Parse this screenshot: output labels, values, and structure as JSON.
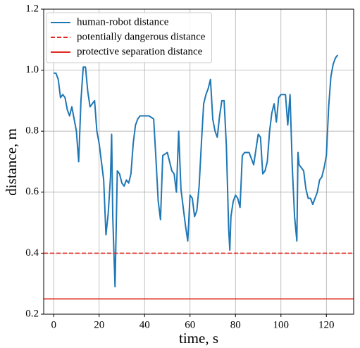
{
  "chart_data": {
    "type": "line",
    "xlabel": "time, s",
    "ylabel": "distance, m",
    "xlim": [
      -4.4,
      132
    ],
    "ylim": [
      0.2,
      1.2
    ],
    "xticks": [
      0,
      20,
      40,
      60,
      80,
      100,
      120
    ],
    "yticks": [
      0.2,
      0.4,
      0.6,
      {
        "value": 1,
        "label": "1.0"
      },
      0.8,
      1.2
    ],
    "grid": true,
    "legend": "upper left",
    "series": [
      {
        "name": "human-robot distance",
        "color": "#1f77b4",
        "x": [
          0,
          1,
          2,
          3,
          4,
          5,
          6,
          7,
          8,
          9,
          10,
          11,
          12,
          13,
          14,
          15,
          16,
          17,
          18,
          19,
          20,
          21,
          22,
          23,
          24,
          25,
          25.5,
          26,
          27,
          28,
          29,
          30,
          31,
          32,
          33,
          34,
          35,
          36,
          37,
          38,
          40,
          42,
          44,
          45,
          46,
          47,
          48,
          50,
          52,
          53,
          54,
          55,
          56,
          57,
          58,
          59,
          60,
          61,
          62,
          63,
          64,
          65,
          66,
          67,
          68,
          69,
          70,
          71,
          72,
          73,
          74,
          75,
          76,
          77,
          77.5,
          78,
          79,
          80,
          81,
          82,
          83,
          84,
          86,
          88,
          90,
          91,
          92,
          93,
          94,
          95,
          96,
          97,
          98,
          99,
          100,
          102,
          103,
          104,
          105,
          106,
          107,
          107.5,
          108,
          109,
          110,
          111,
          112,
          113,
          114,
          115,
          116,
          117,
          118,
          119,
          120,
          121,
          122,
          123,
          124,
          125
        ],
        "values": [
          0.99,
          0.99,
          0.97,
          0.91,
          0.92,
          0.91,
          0.87,
          0.85,
          0.88,
          0.84,
          0.8,
          0.7,
          0.9,
          1.01,
          1.01,
          0.93,
          0.88,
          0.89,
          0.9,
          0.8,
          0.76,
          0.7,
          0.64,
          0.46,
          0.53,
          0.65,
          0.79,
          0.52,
          0.29,
          0.67,
          0.66,
          0.63,
          0.62,
          0.64,
          0.63,
          0.66,
          0.76,
          0.82,
          0.84,
          0.85,
          0.85,
          0.85,
          0.84,
          0.71,
          0.57,
          0.51,
          0.72,
          0.73,
          0.67,
          0.66,
          0.6,
          0.8,
          0.61,
          0.55,
          0.49,
          0.44,
          0.59,
          0.58,
          0.52,
          0.54,
          0.62,
          0.76,
          0.89,
          0.92,
          0.94,
          0.97,
          0.84,
          0.8,
          0.78,
          0.85,
          0.9,
          0.9,
          0.75,
          0.48,
          0.41,
          0.52,
          0.57,
          0.59,
          0.58,
          0.55,
          0.72,
          0.73,
          0.73,
          0.69,
          0.79,
          0.78,
          0.66,
          0.67,
          0.7,
          0.8,
          0.86,
          0.89,
          0.83,
          0.91,
          0.92,
          0.92,
          0.82,
          0.92,
          0.68,
          0.52,
          0.44,
          0.73,
          0.69,
          0.68,
          0.67,
          0.61,
          0.58,
          0.58,
          0.56,
          0.58,
          0.6,
          0.64,
          0.65,
          0.68,
          0.72,
          0.88,
          0.98,
          1.02,
          1.04,
          1.05
        ]
      }
    ],
    "hlines": [
      {
        "name": "potentially dangerous distance",
        "color": "#e0291f",
        "value": 0.4,
        "style": "dashed"
      },
      {
        "name": "protective separation distance",
        "color": "#e0291f",
        "value": 0.25,
        "style": "solid"
      }
    ]
  }
}
